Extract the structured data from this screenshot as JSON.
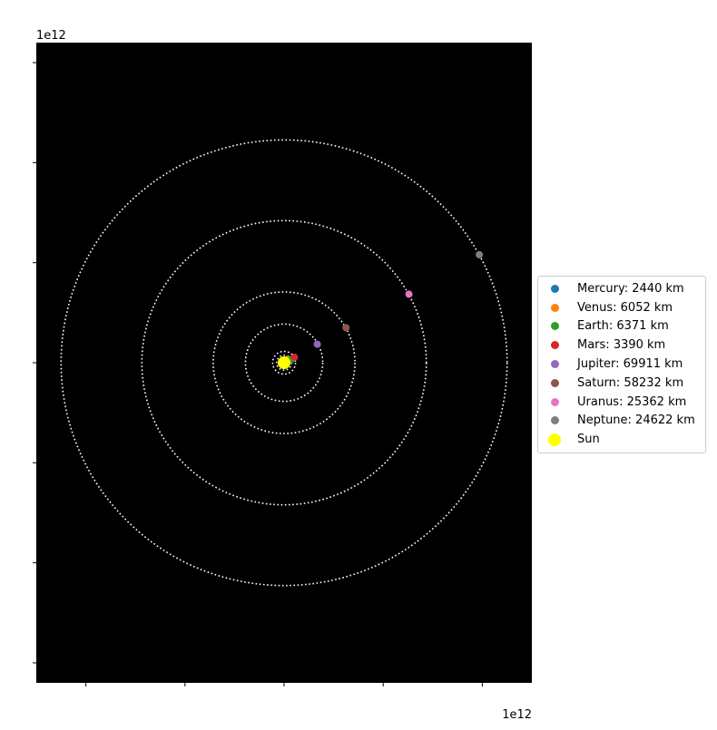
{
  "chart_data": {
    "type": "scatter",
    "title": "",
    "xlabel": "",
    "ylabel": "",
    "x_offset_label": "1e12",
    "y_offset_label": "1e12",
    "xlim": [
      -5,
      5
    ],
    "ylim": [
      -6.4,
      6.4
    ],
    "x_ticks": [
      -4,
      -2,
      0,
      2,
      4
    ],
    "y_ticks": [
      -6,
      -4,
      -2,
      0,
      2,
      4,
      6
    ],
    "background": "#000000",
    "orbit_color": "#ffffff",
    "legend_position": "center-left outside plot",
    "sun": {
      "name": "Sun",
      "x": 0,
      "y": 0,
      "color": "#ffff00"
    },
    "series": [
      {
        "name": "Mercury",
        "label": "Mercury: 2440 km",
        "radius_km": 2440,
        "orbit_radius": 0.06,
        "x": 0.05,
        "y": 0.02,
        "color": "#1f77b4"
      },
      {
        "name": "Venus",
        "label": "Venus: 6052 km",
        "radius_km": 6052,
        "orbit_radius": 0.11,
        "x": 0.08,
        "y": 0.07,
        "color": "#ff7f0e"
      },
      {
        "name": "Earth",
        "label": "Earth: 6371 km",
        "radius_km": 6371,
        "orbit_radius": 0.15,
        "x": 0.14,
        "y": 0.06,
        "color": "#2ca02c"
      },
      {
        "name": "Mars",
        "label": "Mars: 3390 km",
        "radius_km": 3390,
        "orbit_radius": 0.23,
        "x": 0.21,
        "y": 0.11,
        "color": "#d62728"
      },
      {
        "name": "Jupiter",
        "label": "Jupiter: 69911 km",
        "radius_km": 69911,
        "orbit_radius": 0.78,
        "x": 0.67,
        "y": 0.37,
        "color": "#9467bd"
      },
      {
        "name": "Saturn",
        "label": "Saturn: 58232 km",
        "radius_km": 58232,
        "orbit_radius": 1.43,
        "x": 1.25,
        "y": 0.7,
        "color": "#8c564b"
      },
      {
        "name": "Uranus",
        "label": "Uranus: 25362 km",
        "radius_km": 25362,
        "orbit_radius": 2.87,
        "x": 2.52,
        "y": 1.37,
        "color": "#e377c2"
      },
      {
        "name": "Neptune",
        "label": "Neptune: 24622 km",
        "radius_km": 24622,
        "orbit_radius": 4.5,
        "x": 3.94,
        "y": 2.16,
        "color": "#7f7f7f"
      }
    ]
  }
}
